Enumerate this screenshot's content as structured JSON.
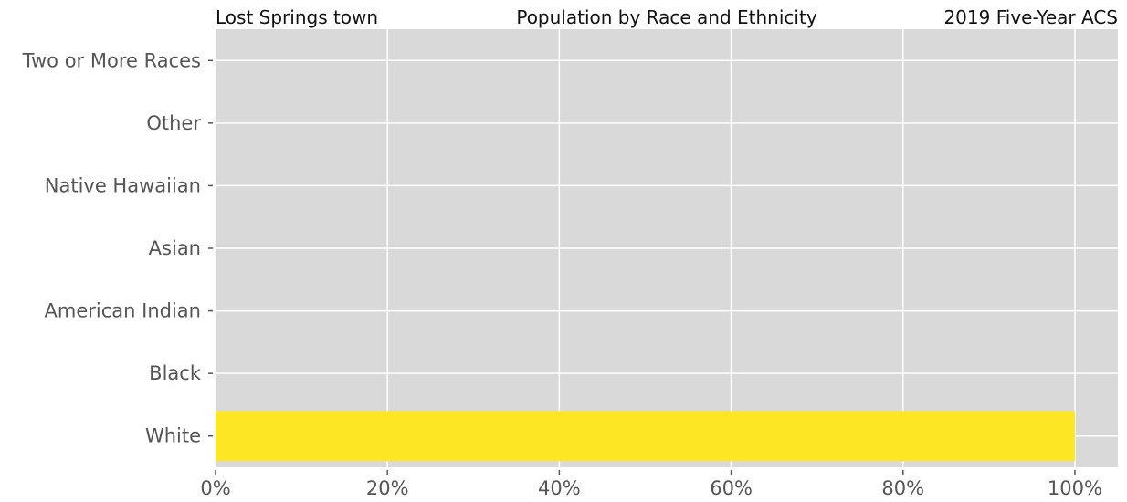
{
  "header": {
    "left": "Lost Springs town",
    "center": "Population by Race and Ethnicity",
    "right": "2019 Five-Year ACS"
  },
  "colors": {
    "background": "#d9d9d9",
    "grid": "#ffffff",
    "bar": "#fde725"
  },
  "chart_data": {
    "type": "bar",
    "orientation": "horizontal",
    "title": "Population by Race and Ethnicity",
    "categories": [
      "White",
      "Black",
      "American Indian",
      "Asian",
      "Native Hawaiian",
      "Other",
      "Two or More Races"
    ],
    "values": [
      1.0,
      0,
      0,
      0,
      0,
      0,
      0
    ],
    "xlim": [
      0,
      1.05
    ],
    "xticks": [
      0,
      0.2,
      0.4,
      0.6,
      0.8,
      1.0
    ],
    "xtick_labels": [
      "0%",
      "20%",
      "40%",
      "60%",
      "80%",
      "100%"
    ],
    "grid": true
  }
}
